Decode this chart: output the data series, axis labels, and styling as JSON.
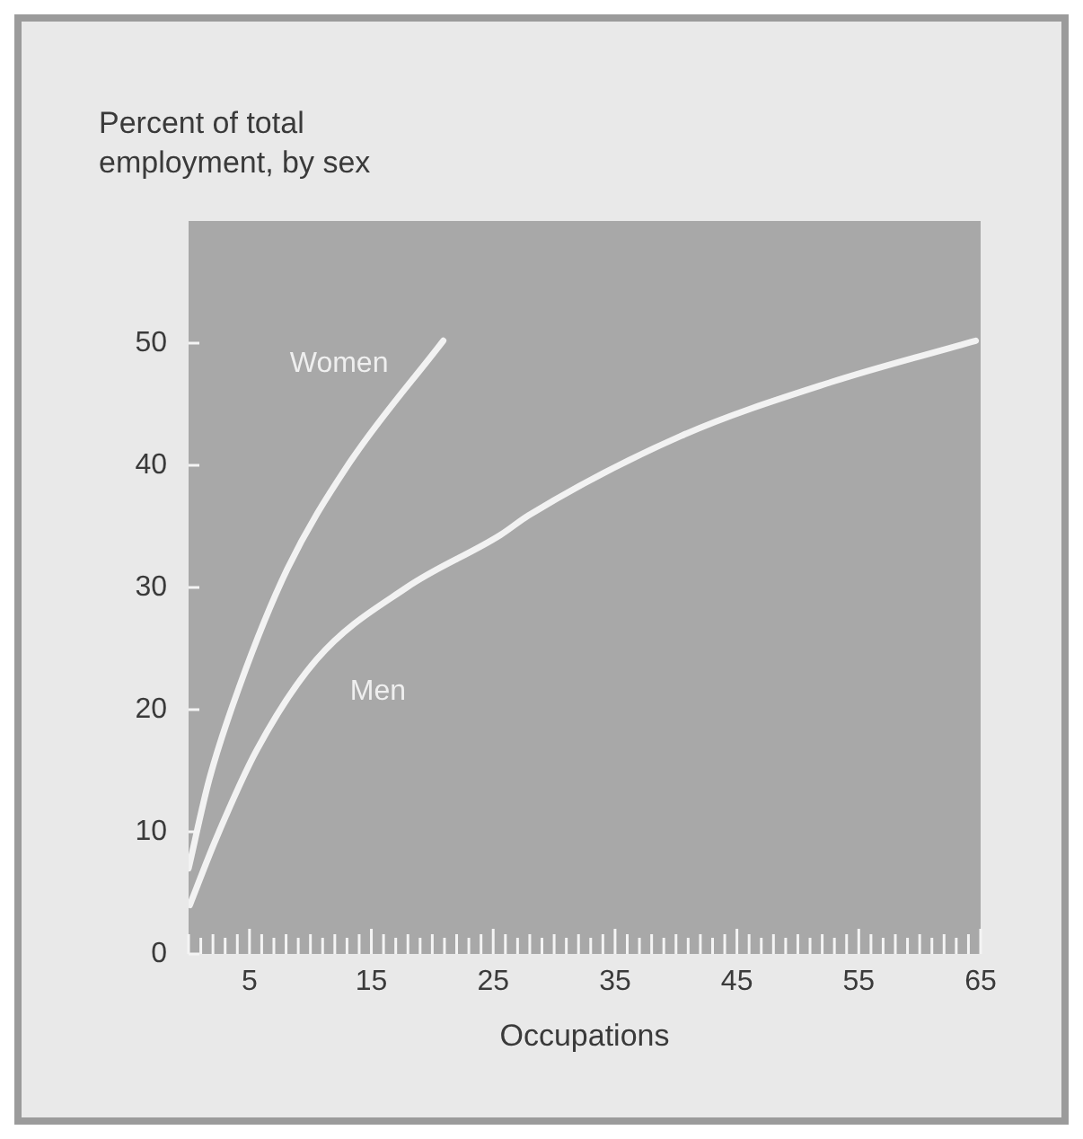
{
  "chart_data": {
    "type": "line",
    "ylabel": "Percent of total employment, by sex",
    "xlabel": "Occupations",
    "series": [
      {
        "name": "Women",
        "color": "#f2f2f2",
        "x": [
          0,
          1.7,
          4.1,
          8.1,
          13,
          20.9
        ],
        "values": [
          7,
          14.3,
          21.7,
          31.5,
          39.9,
          50.2
        ]
      },
      {
        "name": "Men",
        "color": "#f2f2f2",
        "x": [
          0.1,
          2.2,
          5.6,
          10.5,
          17.9,
          25.6,
          27.9,
          40.4,
          52.7,
          64.6
        ],
        "values": [
          4,
          9.3,
          16.7,
          24.1,
          30,
          34.3,
          35.9,
          42.4,
          46.8,
          50.2
        ]
      }
    ],
    "xlim": [
      0,
      65
    ],
    "ylim": [
      0,
      60
    ],
    "yticks": [
      0,
      10,
      20,
      30,
      40,
      50
    ],
    "xticks": [
      {
        "value": 0,
        "label": null
      },
      {
        "value": 1,
        "label": null
      },
      {
        "value": 2,
        "label": null
      },
      {
        "value": 3,
        "label": null
      },
      {
        "value": 4,
        "label": null
      },
      5,
      {
        "value": 6,
        "label": null
      },
      {
        "value": 7,
        "label": null
      },
      {
        "value": 8,
        "label": null
      },
      {
        "value": 9,
        "label": null
      },
      {
        "value": 10,
        "label": null
      },
      {
        "value": 11,
        "label": null
      },
      {
        "value": 12,
        "label": null
      },
      {
        "value": 13,
        "label": null
      },
      {
        "value": 14,
        "label": null
      },
      15,
      {
        "value": 16,
        "label": null
      },
      {
        "value": 17,
        "label": null
      },
      {
        "value": 18,
        "label": null
      },
      {
        "value": 19,
        "label": null
      },
      {
        "value": 20,
        "label": null
      },
      {
        "value": 21,
        "label": null
      },
      {
        "value": 22,
        "label": null
      },
      {
        "value": 23,
        "label": null
      },
      {
        "value": 24,
        "label": null
      },
      25,
      {
        "value": 26,
        "label": null
      },
      {
        "value": 27,
        "label": null
      },
      {
        "value": 28,
        "label": null
      },
      {
        "value": 29,
        "label": null
      },
      {
        "value": 30,
        "label": null
      },
      {
        "value": 31,
        "label": null
      },
      {
        "value": 32,
        "label": null
      },
      {
        "value": 33,
        "label": null
      },
      {
        "value": 34,
        "label": null
      },
      35,
      {
        "value": 36,
        "label": null
      },
      {
        "value": 37,
        "label": null
      },
      {
        "value": 38,
        "label": null
      },
      {
        "value": 39,
        "label": null
      },
      {
        "value": 40,
        "label": null
      },
      {
        "value": 41,
        "label": null
      },
      {
        "value": 42,
        "label": null
      },
      {
        "value": 43,
        "label": null
      },
      {
        "value": 44,
        "label": null
      },
      45,
      {
        "value": 46,
        "label": null
      },
      {
        "value": 47,
        "label": null
      },
      {
        "value": 48,
        "label": null
      },
      {
        "value": 49,
        "label": null
      },
      {
        "value": 50,
        "label": null
      },
      {
        "value": 51,
        "label": null
      },
      {
        "value": 52,
        "label": null
      },
      {
        "value": 53,
        "label": null
      },
      {
        "value": 54,
        "label": null
      },
      55,
      {
        "value": 56,
        "label": null
      },
      {
        "value": 57,
        "label": null
      },
      {
        "value": 58,
        "label": null
      },
      {
        "value": 59,
        "label": null
      },
      {
        "value": 60,
        "label": null
      },
      {
        "value": 61,
        "label": null
      },
      {
        "value": 62,
        "label": null
      },
      {
        "value": 63,
        "label": null
      },
      {
        "value": 64,
        "label": null
      },
      65
    ],
    "legend": false,
    "grid": false
  }
}
